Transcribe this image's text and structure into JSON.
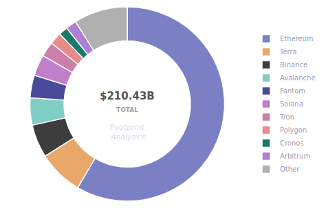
{
  "chart_data": {
    "type": "pie",
    "categories": [
      "Ethereum",
      "Terra",
      "Binance",
      "Avalanche",
      "Fantom",
      "Solana",
      "Tron",
      "Polygon",
      "Cronos",
      "Arbitrum",
      "Other"
    ],
    "values": [
      58.5,
      7.5,
      5.5,
      4.5,
      3.8,
      3.5,
      2.5,
      2.0,
      1.5,
      1.8,
      8.9
    ],
    "colors": [
      "#7b7fc4",
      "#e8a86a",
      "#3d3d3d",
      "#7ecec4",
      "#4a4a9c",
      "#c07ecb",
      "#cc7fa8",
      "#e88a8a",
      "#1a7a6a",
      "#b07ed4",
      "#b0b0b0"
    ],
    "annotations": [
      "$210.43B",
      "TOTAL",
      "Footprint",
      "Analytics"
    ],
    "legend": "right"
  }
}
